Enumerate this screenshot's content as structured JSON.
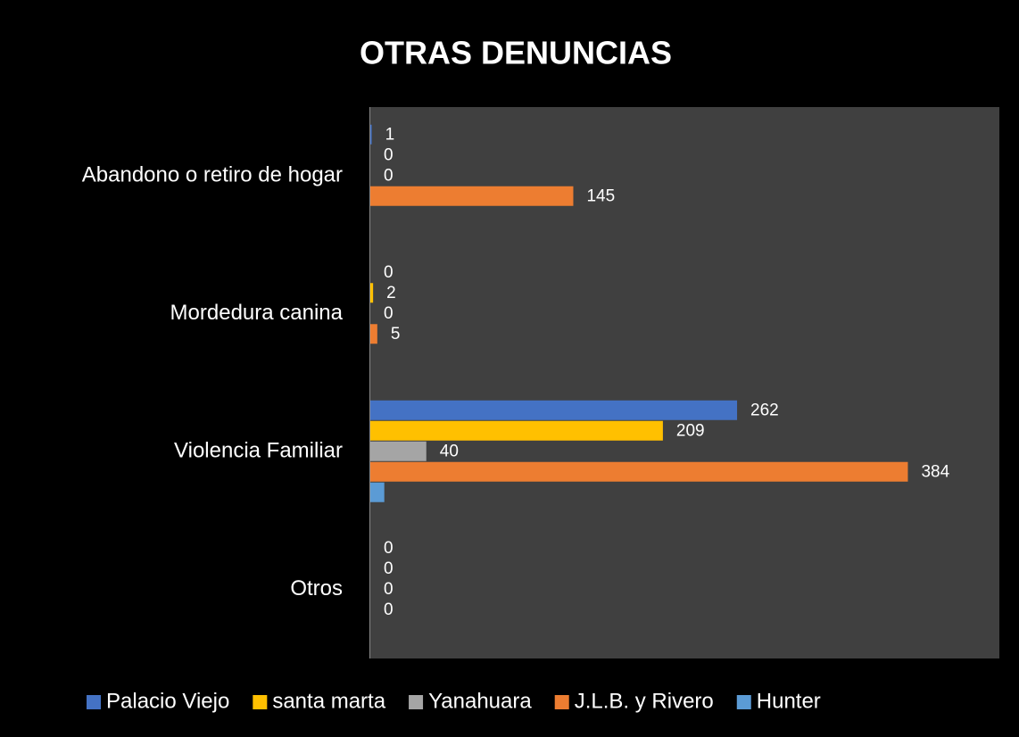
{
  "chart_data": {
    "type": "hbar",
    "title": "OTRAS DENUNCIAS",
    "categories": [
      "Abandono o retiro de hogar",
      "Mordedura canina",
      "Violencia Familiar",
      "Otros"
    ],
    "series": [
      {
        "name": "Palacio Viejo",
        "color": "#4472c4",
        "values": [
          1,
          0,
          262,
          0
        ]
      },
      {
        "name": "santa marta",
        "color": "#ffc000",
        "values": [
          0,
          2,
          209,
          0
        ]
      },
      {
        "name": "Yanahuara",
        "color": "#a5a5a5",
        "values": [
          0,
          0,
          40,
          0
        ]
      },
      {
        "name": "J.L.B. y Rivero",
        "color": "#ed7d31",
        "values": [
          145,
          5,
          384,
          0
        ]
      },
      {
        "name": "Hunter",
        "color": "#5b9bd5",
        "values": [
          null,
          null,
          10,
          null
        ],
        "data_labels": false
      }
    ],
    "xlim": [
      0,
      450
    ],
    "legend": "bottom"
  }
}
